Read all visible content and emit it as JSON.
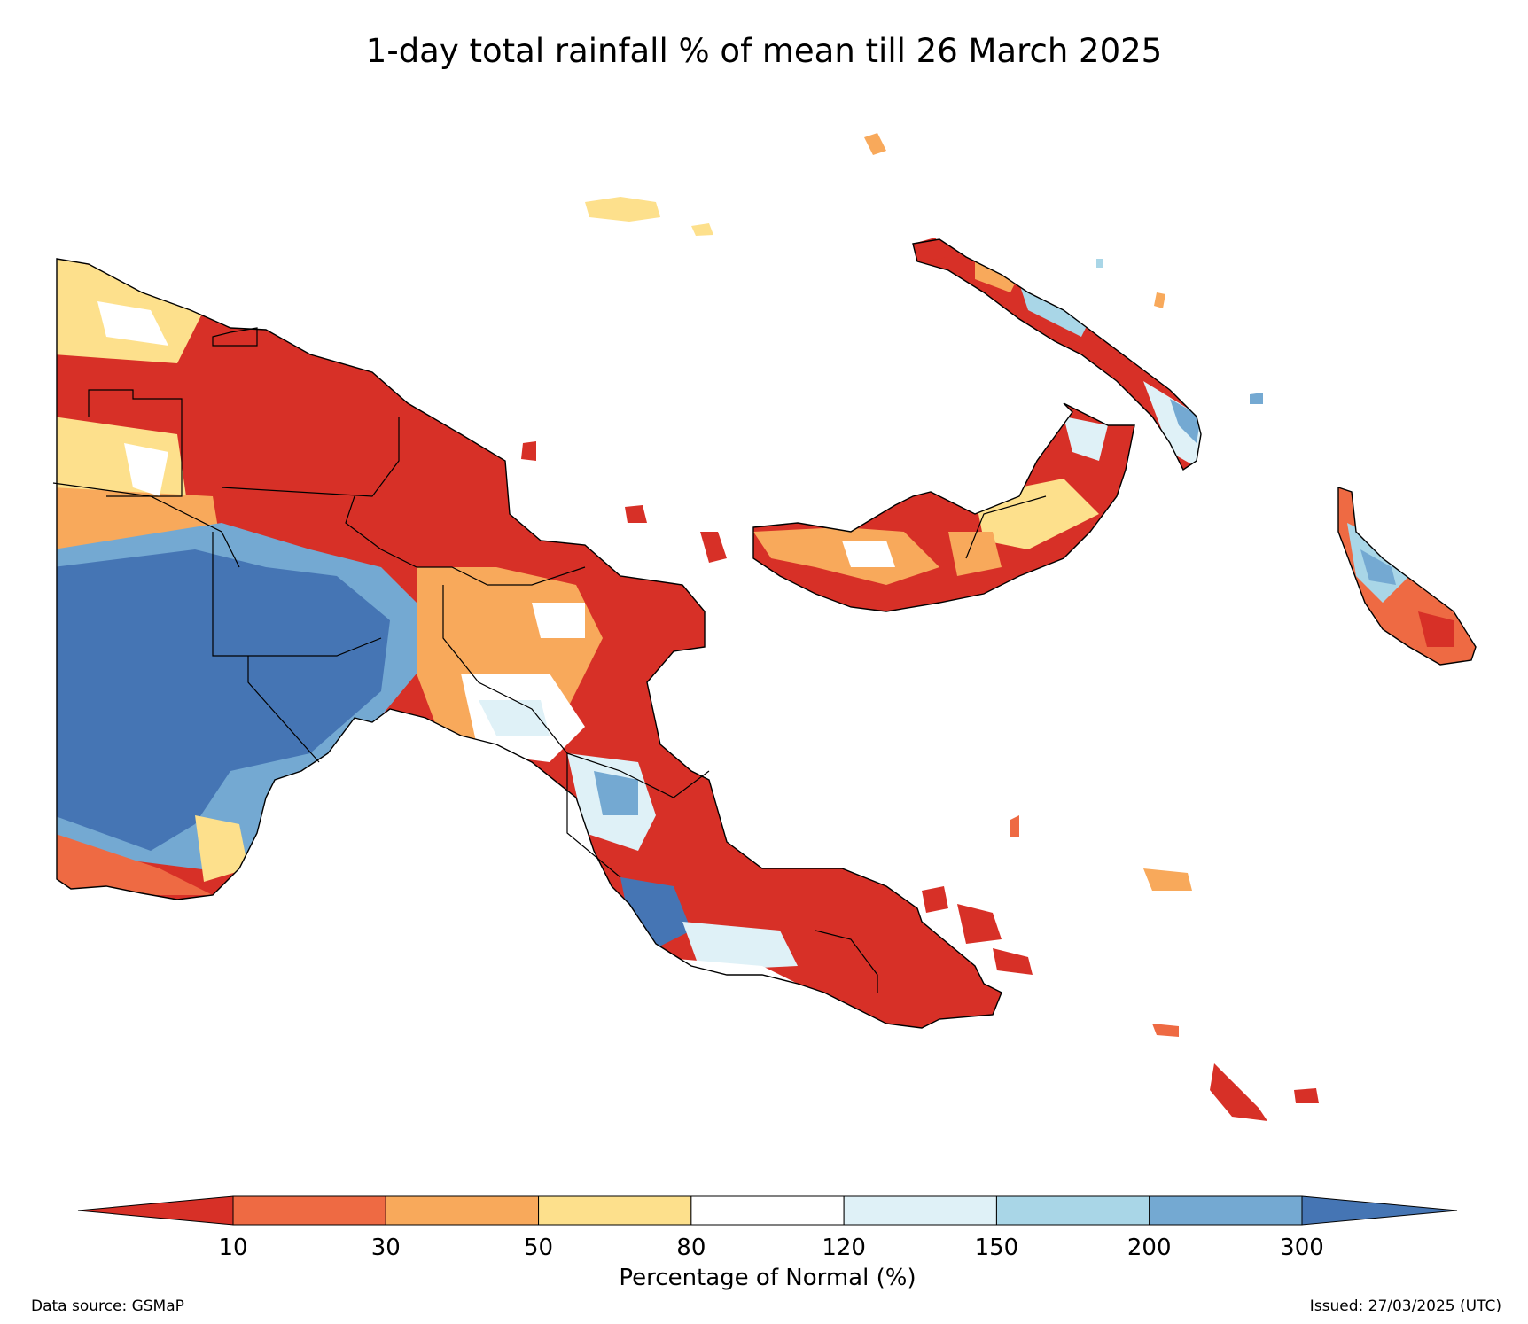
{
  "title": "1-day total rainfall % of mean till 26 March 2025",
  "colors": {
    "c_lt10": "#d73027",
    "c_10_30": "#ee6a43",
    "c_30_50": "#f8a95b",
    "c_50_80": "#fde08c",
    "c_80_120": "#ffffff",
    "c_120_150": "#dff1f7",
    "c_150_200": "#a9d6e7",
    "c_200_300": "#74a9d2",
    "c_gt300": "#4575b4"
  },
  "legend": {
    "label": "Percentage of Normal (%)",
    "ticks": [
      "10",
      "30",
      "50",
      "80",
      "120",
      "150",
      "200",
      "300"
    ],
    "bins": [
      "c_lt10",
      "c_10_30",
      "c_30_50",
      "c_50_80",
      "c_80_120",
      "c_120_150",
      "c_150_200",
      "c_200_300",
      "c_gt300"
    ]
  },
  "footer": {
    "source": "Data source: GSMaP",
    "issued": "Issued: 27/03/2025 (UTC)"
  }
}
